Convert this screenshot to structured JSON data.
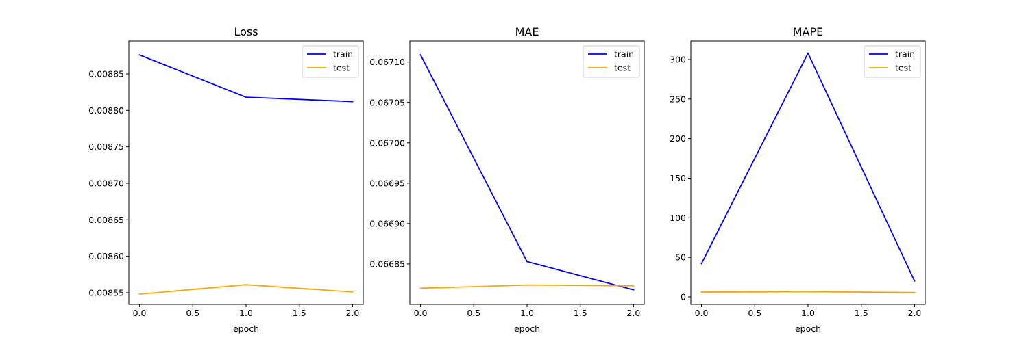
{
  "chart_data": [
    {
      "type": "line",
      "title": "Loss",
      "xlabel": "epoch",
      "ylabel": "",
      "x": [
        0,
        1,
        2
      ],
      "xlim": [
        -0.1,
        2.1
      ],
      "ylim": [
        0.008534,
        0.008895
      ],
      "xticks": [
        0.0,
        0.5,
        1.0,
        1.5,
        2.0
      ],
      "xtick_labels": [
        "0.0",
        "0.5",
        "1.0",
        "1.5",
        "2.0"
      ],
      "yticks": [
        0.00855,
        0.0086,
        0.00865,
        0.0087,
        0.00875,
        0.0088,
        0.00885
      ],
      "ytick_labels": [
        "0.00855",
        "0.00860",
        "0.00865",
        "0.00870",
        "0.00875",
        "0.00880",
        "0.00885"
      ],
      "legend_position": "top-right",
      "series": [
        {
          "name": "train",
          "color": "#0000ff",
          "values": [
            0.008876,
            0.008818,
            0.008812
          ]
        },
        {
          "name": "test",
          "color": "#ffa500",
          "values": [
            0.008548,
            0.008561,
            0.008551
          ]
        }
      ]
    },
    {
      "type": "line",
      "title": "MAE",
      "xlabel": "epoch",
      "ylabel": "",
      "x": [
        0,
        1,
        2
      ],
      "xlim": [
        -0.1,
        2.1
      ],
      "ylim": [
        0.0668,
        0.067126
      ],
      "xticks": [
        0.0,
        0.5,
        1.0,
        1.5,
        2.0
      ],
      "xtick_labels": [
        "0.0",
        "0.5",
        "1.0",
        "1.5",
        "2.0"
      ],
      "yticks": [
        0.06685,
        0.0669,
        0.06695,
        0.067,
        0.06705,
        0.0671
      ],
      "ytick_labels": [
        "0.06685",
        "0.06690",
        "0.06695",
        "0.06700",
        "0.06705",
        "0.06710"
      ],
      "legend_position": "top-right",
      "series": [
        {
          "name": "train",
          "color": "#0000ff",
          "values": [
            0.067109,
            0.066853,
            0.066818
          ]
        },
        {
          "name": "test",
          "color": "#ffa500",
          "values": [
            0.06682,
            0.066824,
            0.066823
          ]
        }
      ]
    },
    {
      "type": "line",
      "title": "MAPE",
      "xlabel": "epoch",
      "ylabel": "",
      "x": [
        0,
        1,
        2
      ],
      "xlim": [
        -0.1,
        2.1
      ],
      "ylim": [
        -9.5,
        323.3
      ],
      "xticks": [
        0.0,
        0.5,
        1.0,
        1.5,
        2.0
      ],
      "xtick_labels": [
        "0.0",
        "0.5",
        "1.0",
        "1.5",
        "2.0"
      ],
      "yticks": [
        0,
        50,
        100,
        150,
        200,
        250,
        300
      ],
      "ytick_labels": [
        "0",
        "50",
        "100",
        "150",
        "200",
        "250",
        "300"
      ],
      "legend_position": "top-right",
      "series": [
        {
          "name": "train",
          "color": "#0000ff",
          "values": [
            42,
            308,
            20
          ]
        },
        {
          "name": "test",
          "color": "#ffa500",
          "values": [
            6,
            6.5,
            5.5
          ]
        }
      ]
    }
  ]
}
